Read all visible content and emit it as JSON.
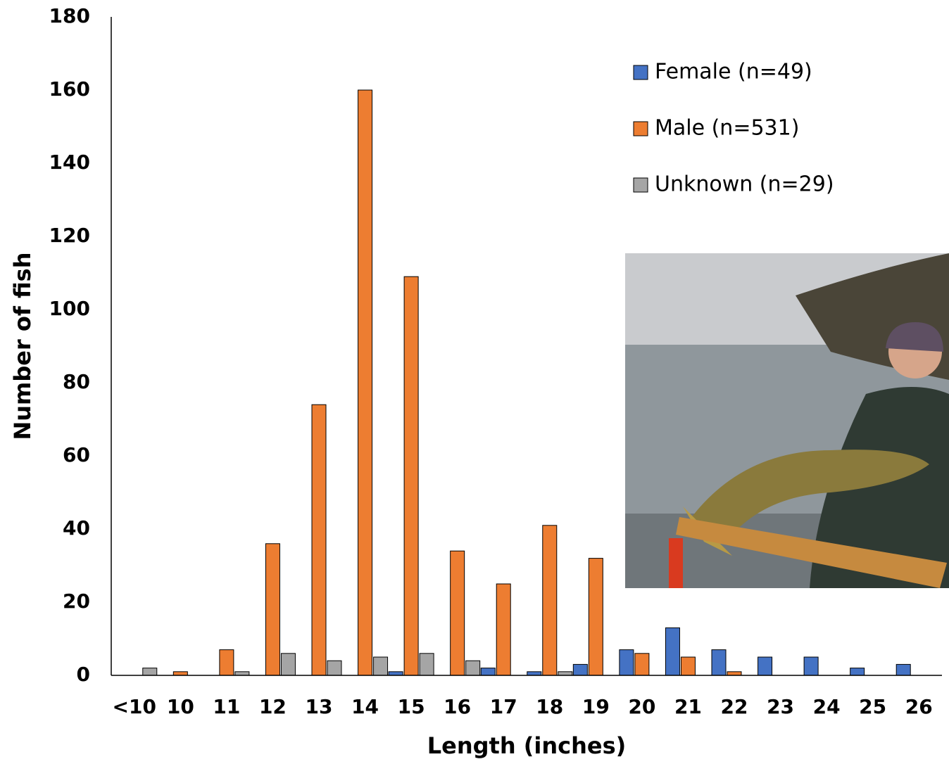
{
  "chart_data": {
    "type": "bar",
    "x_label": "Length (inches)",
    "y_label": "Number of fish",
    "categories": [
      "<10",
      "10",
      "11",
      "12",
      "13",
      "14",
      "15",
      "16",
      "17",
      "18",
      "19",
      "20",
      "21",
      "22",
      "23",
      "24",
      "25",
      "26"
    ],
    "series": [
      {
        "name": "Female (n=49)",
        "color": "#4472c4",
        "values": [
          0,
          0,
          0,
          0,
          0,
          0,
          1,
          0,
          2,
          1,
          3,
          7,
          13,
          7,
          5,
          5,
          2,
          3
        ]
      },
      {
        "name": "Male (n=531)",
        "color": "#ed7d31",
        "values": [
          0,
          1,
          7,
          36,
          74,
          160,
          109,
          34,
          25,
          41,
          32,
          6,
          5,
          1,
          0,
          0,
          0,
          0
        ]
      },
      {
        "name": "Unknown (n=29)",
        "color": "#a5a5a5",
        "values": [
          2,
          0,
          1,
          6,
          4,
          5,
          6,
          4,
          0,
          1,
          0,
          0,
          0,
          0,
          0,
          0,
          0,
          0
        ]
      }
    ],
    "ylim": [
      0,
      180
    ],
    "yticks": [
      0,
      20,
      40,
      60,
      80,
      100,
      120,
      140,
      160,
      180
    ],
    "grid": false
  }
}
